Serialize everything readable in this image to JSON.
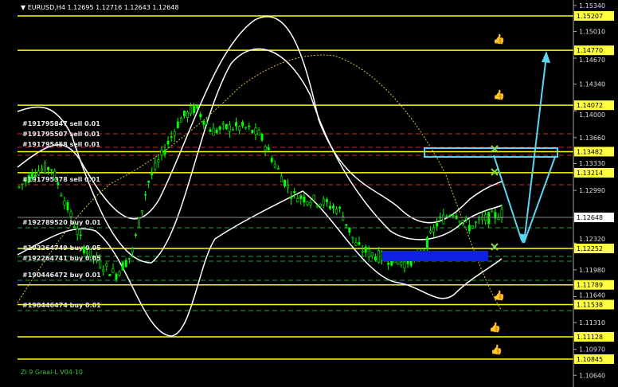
{
  "header": {
    "symbol": "EURUSD,H4",
    "ohlc": "1.12695 1.12716 1.12643 1.12648"
  },
  "footer": {
    "indicator": "Zi 9 Graal-L V04-10"
  },
  "colors": {
    "background": "#000000",
    "level": "#ffff00",
    "bands": "#ffffff",
    "bull_candle": "#00ff00",
    "arrow": "#5ad7f0",
    "order_sell": "#c03020",
    "order_buy": "#20a040",
    "ma": "#e0c040"
  },
  "chart_data": {
    "type": "candlestick",
    "symbol": "EURUSD",
    "timeframe": "H4",
    "ylim": [
      1.1064,
      1.1534
    ],
    "y_ticks": [
      "1.15340",
      "1.15010",
      "1.14670",
      "1.14340",
      "1.14000",
      "1.13660",
      "1.13330",
      "1.12990",
      "1.12320",
      "1.11980",
      "1.11640",
      "1.11310",
      "1.10970",
      "1.10640"
    ],
    "current_price": "1.12648",
    "levels": [
      "1.15207",
      "1.14770",
      "1.14072",
      "1.13482",
      "1.13214",
      "1.12252",
      "1.11789",
      "1.11538",
      "1.11128",
      "1.10845"
    ],
    "approx_closes": [
      1.13031,
      1.13234,
      1.13284,
      1.12778,
      1.12272,
      1.1207,
      1.11918,
      1.12171,
      1.13082,
      1.13487,
      1.13891,
      1.14043,
      1.1374,
      1.1379,
      1.1379,
      1.13689,
      1.13284,
      1.1293,
      1.12879,
      1.12829,
      1.12727,
      1.12272,
      1.12171,
      1.1212,
      1.1207,
      1.12171,
      1.12576,
      1.12727,
      1.12525,
      1.12626,
      1.12697
    ],
    "orders": [
      {
        "label": "#191795847 sell 0.01",
        "side": "sell"
      },
      {
        "label": "#191795507 sell 0.01",
        "side": "sell"
      },
      {
        "label": "#191795458 sell 0.01",
        "side": "sell"
      },
      {
        "label": "#191795378 sell 0.01",
        "side": "sell"
      },
      {
        "label": "#192789520 buy 0.01",
        "side": "buy"
      },
      {
        "label": "#192264749 buy 0.05",
        "side": "buy"
      },
      {
        "label": "#192264741 buy 0.05",
        "side": "buy"
      },
      {
        "label": "#190446472 buy 0.01",
        "side": "buy"
      },
      {
        "label": "#190446474 buy 0.01",
        "side": "buy"
      }
    ]
  }
}
